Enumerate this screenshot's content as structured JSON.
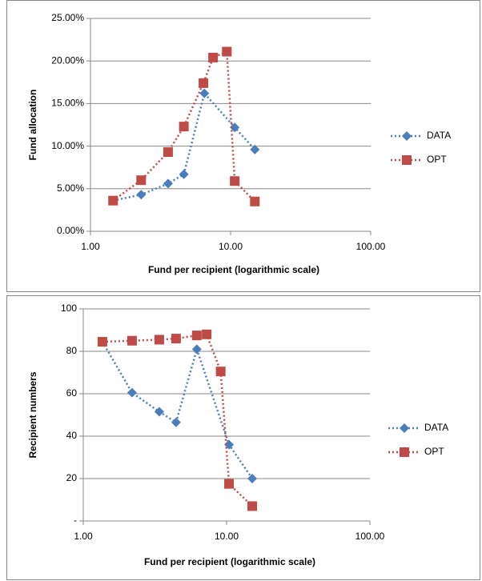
{
  "chart_data": [
    {
      "type": "scatter",
      "log_x": true,
      "grid": true,
      "legend_position": "right",
      "y_label": "Fund allocation",
      "x_label": "Fund per recipient (logarithmic scale)",
      "xlim": [
        1,
        100
      ],
      "xticks": [
        {
          "value": 1,
          "label": "1.00"
        },
        {
          "value": 10,
          "label": "10.00"
        },
        {
          "value": 100,
          "label": "100.00"
        }
      ],
      "ylim": [
        0,
        25
      ],
      "yticks": [
        {
          "value": 0,
          "label": "0.00%"
        },
        {
          "value": 5,
          "label": "5.00%"
        },
        {
          "value": 10,
          "label": "10.00%"
        },
        {
          "value": 15,
          "label": "15.00%"
        },
        {
          "value": 20,
          "label": "20.00%"
        },
        {
          "value": 25,
          "label": "25.00%"
        }
      ],
      "series": [
        {
          "name": "DATA",
          "color": "#4a7ebb",
          "marker": "diamond",
          "x": [
            1.45,
            2.3,
            3.58,
            4.64,
            6.5,
            10.7,
            14.9
          ],
          "values": [
            3.6,
            4.3,
            5.6,
            6.7,
            16.2,
            12.2,
            9.6
          ]
        },
        {
          "name": "OPT",
          "color": "#be4b48",
          "marker": "square",
          "x": [
            1.45,
            2.3,
            3.58,
            4.64,
            6.4,
            7.5,
            9.4,
            10.7,
            14.9
          ],
          "values": [
            3.6,
            6.0,
            9.3,
            12.3,
            17.4,
            20.4,
            21.1,
            5.9,
            3.5
          ]
        }
      ]
    },
    {
      "type": "scatter",
      "log_x": true,
      "grid": true,
      "legend_position": "right",
      "y_label": "Recipient numbers",
      "x_label": "Fund per recipient (logarithmic scale)",
      "xlim": [
        1,
        100
      ],
      "xticks": [
        {
          "value": 1,
          "label": "1.00"
        },
        {
          "value": 10,
          "label": "10.00"
        },
        {
          "value": 100,
          "label": "100.00"
        }
      ],
      "ylim": [
        0,
        100
      ],
      "yticks": [
        {
          "value": 0,
          "label": "-"
        },
        20,
        40,
        60,
        80,
        100
      ],
      "series": [
        {
          "name": "DATA",
          "color": "#4a7ebb",
          "marker": "diamond",
          "x": [
            1.36,
            2.19,
            3.39,
            4.44,
            6.2,
            10.4,
            15.1
          ],
          "values": [
            84.5,
            60.5,
            51.5,
            46.5,
            81,
            36,
            20
          ]
        },
        {
          "name": "OPT",
          "color": "#be4b48",
          "marker": "square",
          "x": [
            1.36,
            2.19,
            3.39,
            4.44,
            6.2,
            7.26,
            9.1,
            10.4,
            15.1
          ],
          "values": [
            84.5,
            85,
            85.5,
            86,
            87.5,
            88,
            70.5,
            17.5,
            7
          ]
        }
      ]
    }
  ]
}
